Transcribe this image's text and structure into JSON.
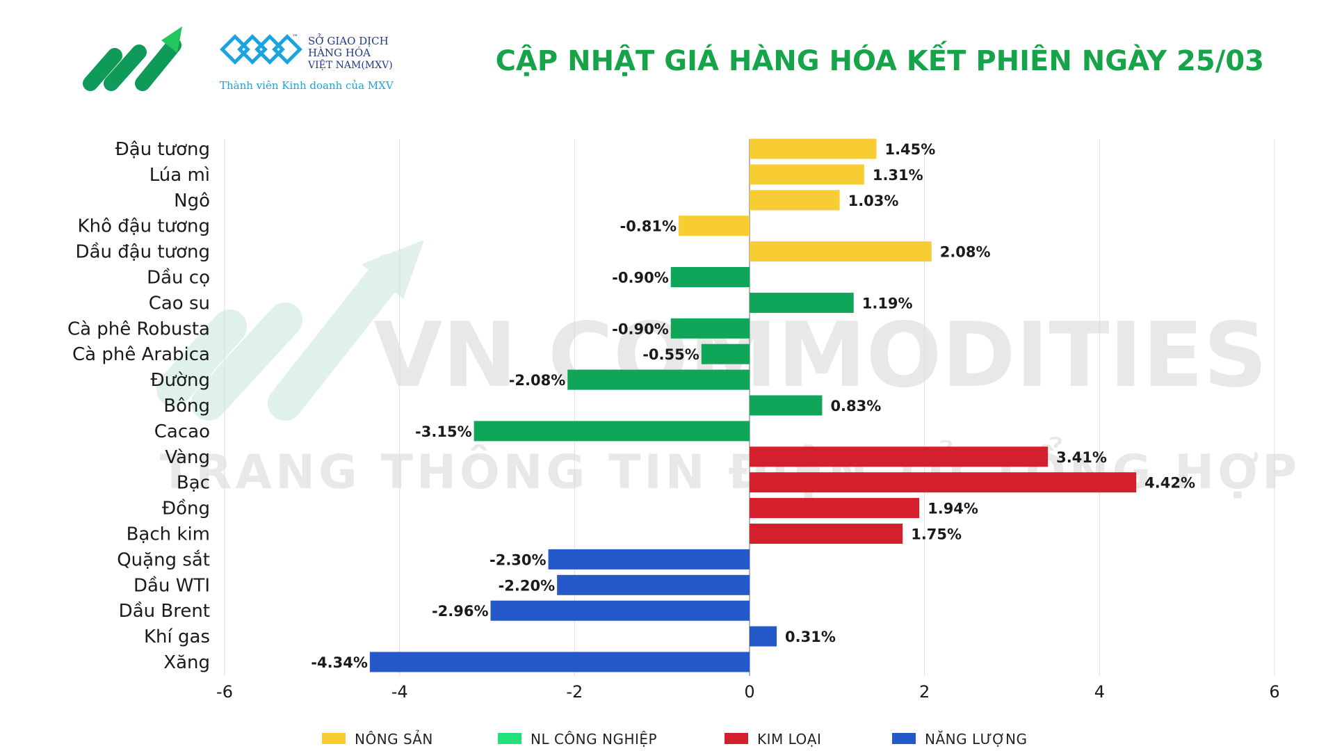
{
  "header": {
    "title": "CẬP NHẬT GIÁ HÀNG HÓA KẾT PHIÊN NGÀY 25/03",
    "title_color": "#17a34a",
    "logo_exchange_lines": [
      "SỞ GIAO DỊCH",
      "HÀNG HÓA",
      "VIỆT NAM(MXV)"
    ],
    "logo_tm": "™",
    "logo_member_text": "Thành viên Kinh doanh của MXV",
    "brand_green": "#0f9a5a",
    "exchange_blue": "#1aa3e0"
  },
  "watermark": {
    "line1": "VN COMMODITIES",
    "line2": "TRANG THÔNG TIN ĐIỆN TỬ TỔNG HỢP"
  },
  "chart_data": {
    "type": "bar",
    "orientation": "horizontal",
    "categories": [
      "Đậu tương",
      "Lúa mì",
      "Ngô",
      "Khô đậu tương",
      "Dầu đậu tương",
      "Dầu cọ",
      "Cao su",
      "Cà phê Robusta",
      "Cà phê Arabica",
      "Đường",
      "Bông",
      "Cacao",
      "Vàng",
      "Bạc",
      "Đồng",
      "Bạch kim",
      "Quặng sắt",
      "Dầu WTI",
      "Dầu Brent",
      "Khí gas",
      "Xăng"
    ],
    "values": [
      1.45,
      1.31,
      1.03,
      -0.81,
      2.08,
      -0.9,
      1.19,
      -0.9,
      -0.55,
      -2.08,
      0.83,
      -3.15,
      3.41,
      4.42,
      1.94,
      1.75,
      -2.3,
      -2.2,
      -2.96,
      0.31,
      -4.34
    ],
    "value_labels": [
      "1.45%",
      "1.31%",
      "1.03%",
      "-0.81%",
      "2.08%",
      "-0.90%",
      "1.19%",
      "-0.90%",
      "-0.55%",
      "-2.08%",
      "0.83%",
      "-3.15%",
      "3.41%",
      "4.42%",
      "1.94%",
      "1.75%",
      "-2.30%",
      "-2.20%",
      "-2.96%",
      "0.31%",
      "-4.34%"
    ],
    "groups": [
      "nong_san",
      "nong_san",
      "nong_san",
      "nong_san",
      "nong_san",
      "nl_cong_nghiep",
      "nl_cong_nghiep",
      "nl_cong_nghiep",
      "nl_cong_nghiep",
      "nl_cong_nghiep",
      "nl_cong_nghiep",
      "nl_cong_nghiep",
      "kim_loai",
      "kim_loai",
      "kim_loai",
      "kim_loai",
      "nang_luong",
      "nang_luong",
      "nang_luong",
      "nang_luong",
      "nang_luong"
    ],
    "group_colors": {
      "nong_san": "#f8cd33",
      "nl_cong_nghiep": "#0fa65a",
      "kim_loai": "#d41f2c",
      "nang_luong": "#2558c9"
    },
    "legend_swatch_colors": {
      "nong_san": "#f8cd33",
      "nl_cong_nghiep": "#22e07a",
      "kim_loai": "#d41f2c",
      "nang_luong": "#2558c9"
    },
    "legend": [
      {
        "key": "nong_san",
        "label": "NÔNG SẢN"
      },
      {
        "key": "nl_cong_nghiep",
        "label": "NL CÔNG NGHIỆP"
      },
      {
        "key": "kim_loai",
        "label": "KIM LOẠI"
      },
      {
        "key": "nang_luong",
        "label": "NĂNG LƯỢNG"
      }
    ],
    "legend_position": "bottom",
    "xlim": [
      -6,
      6
    ],
    "xticks": [
      -6,
      -4,
      -2,
      0,
      2,
      4,
      6
    ],
    "xtick_labels": [
      "-6",
      "-4",
      "-2",
      "0",
      "2",
      "4",
      "6"
    ],
    "grid": "vertical",
    "title": "",
    "xlabel": "",
    "ylabel": ""
  }
}
